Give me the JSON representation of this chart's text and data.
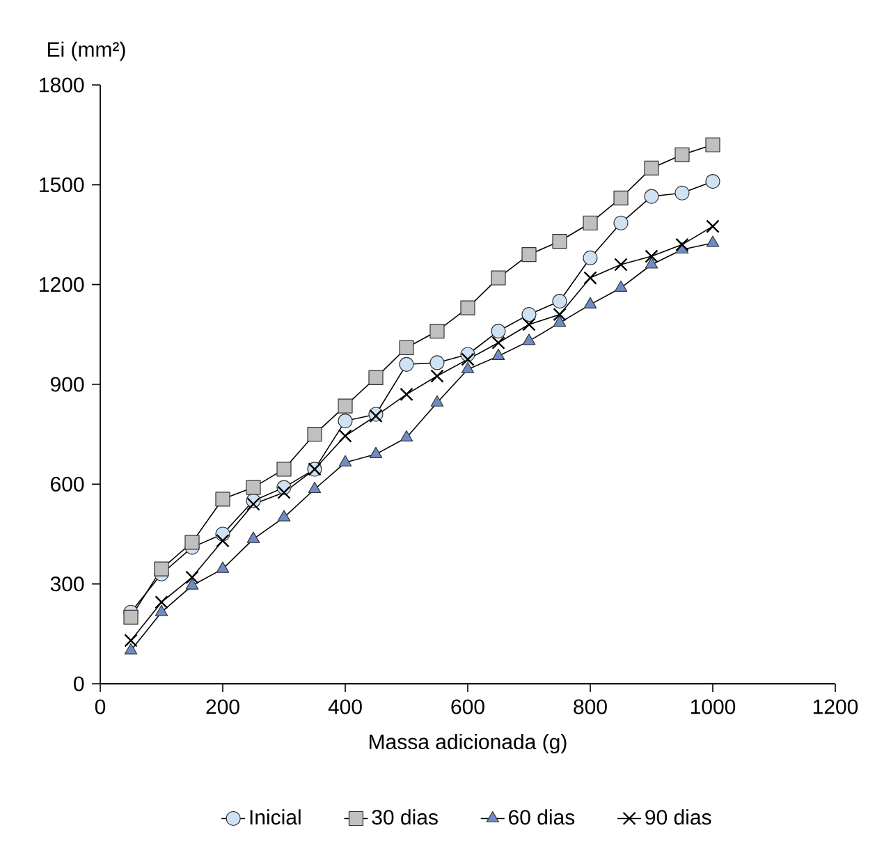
{
  "chart_data": {
    "type": "line",
    "xlabel": "Massa adicionada (g)",
    "ylabel": "Ei (mm²)",
    "x": [
      50,
      100,
      150,
      200,
      250,
      300,
      350,
      400,
      450,
      500,
      550,
      600,
      650,
      700,
      750,
      800,
      850,
      900,
      950,
      1000
    ],
    "series": [
      {
        "name": "Inicial",
        "color": "#cfe2f3",
        "marker": "circle",
        "values": [
          215,
          330,
          410,
          450,
          550,
          590,
          645,
          790,
          810,
          960,
          965,
          990,
          1060,
          1110,
          1150,
          1280,
          1385,
          1465,
          1475,
          1510
        ]
      },
      {
        "name": "30 dias",
        "color": "#c0c0c0",
        "marker": "square",
        "values": [
          200,
          345,
          425,
          555,
          590,
          645,
          750,
          835,
          920,
          1010,
          1060,
          1130,
          1220,
          1290,
          1330,
          1385,
          1460,
          1550,
          1590,
          1620
        ]
      },
      {
        "name": "60 dias",
        "color": "#6f8cc6",
        "marker": "triangle",
        "values": [
          100,
          215,
          295,
          345,
          435,
          500,
          585,
          665,
          690,
          740,
          845,
          945,
          985,
          1030,
          1085,
          1140,
          1190,
          1260,
          1305,
          1325
        ]
      },
      {
        "name": "90 dias",
        "color": "#000000",
        "marker": "cross",
        "values": [
          130,
          245,
          320,
          430,
          540,
          575,
          645,
          745,
          805,
          870,
          925,
          975,
          1025,
          1080,
          1110,
          1220,
          1260,
          1285,
          1320,
          1375
        ]
      }
    ],
    "xlim": [
      0,
      1200
    ],
    "xticks": [
      0,
      200,
      400,
      600,
      800,
      1000,
      1200
    ],
    "ylim": [
      0,
      1800
    ],
    "yticks": [
      0,
      300,
      600,
      900,
      1200,
      1500,
      1800
    ],
    "grid": false,
    "legend": "bottom",
    "line_style": "solid"
  }
}
